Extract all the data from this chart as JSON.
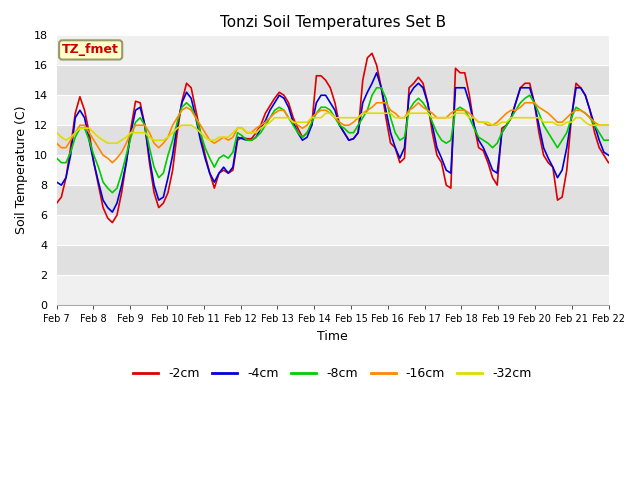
{
  "title": "Tonzi Soil Temperatures Set B",
  "xlabel": "Time",
  "ylabel": "Soil Temperature (C)",
  "annotation": "TZ_fmet",
  "annotation_color": "#cc0000",
  "annotation_bg": "#ffffcc",
  "annotation_border": "#999966",
  "ylim": [
    0,
    18
  ],
  "yticks": [
    0,
    2,
    4,
    6,
    8,
    10,
    12,
    14,
    16,
    18
  ],
  "xtick_labels": [
    "Feb 7",
    "Feb 8",
    "Feb 9",
    "Feb 10",
    "Feb 11",
    "Feb 12",
    "Feb 13",
    "Feb 14",
    "Feb 15",
    "Feb 16",
    "Feb 17",
    "Feb 18",
    "Feb 19",
    "Feb 20",
    "Feb 21",
    "Feb 22"
  ],
  "colors": {
    "-2cm": "#dd0000",
    "-4cm": "#0000dd",
    "-8cm": "#00cc00",
    "-16cm": "#ff8800",
    "-32cm": "#dddd00"
  },
  "linewidth": 1.2,
  "bg_color": "#ffffff",
  "plot_bg_light": "#f0f0f0",
  "plot_bg_dark": "#e0e0e0",
  "grid_color": "#ffffff",
  "series": {
    "-2cm": [
      6.8,
      7.2,
      8.5,
      10.5,
      12.8,
      13.9,
      13.0,
      11.5,
      9.5,
      8.0,
      6.5,
      5.8,
      5.5,
      6.0,
      7.5,
      9.5,
      11.8,
      13.6,
      13.5,
      12.0,
      9.5,
      7.5,
      6.5,
      6.8,
      7.5,
      9.0,
      11.5,
      13.6,
      14.8,
      14.5,
      13.0,
      11.5,
      10.0,
      8.8,
      7.8,
      8.8,
      9.0,
      8.8,
      9.0,
      11.0,
      11.2,
      11.1,
      11.1,
      11.5,
      12.0,
      12.8,
      13.3,
      13.8,
      14.2,
      14.0,
      13.5,
      12.5,
      11.8,
      11.2,
      11.5,
      12.0,
      15.3,
      15.3,
      15.0,
      14.5,
      13.5,
      12.0,
      11.5,
      11.0,
      11.1,
      11.5,
      15.0,
      16.5,
      16.8,
      16.0,
      14.5,
      12.5,
      10.8,
      10.5,
      9.5,
      9.8,
      14.5,
      14.8,
      15.2,
      14.8,
      13.5,
      11.5,
      10.0,
      9.5,
      8.0,
      7.8,
      15.8,
      15.5,
      15.5,
      14.0,
      12.0,
      10.5,
      10.3,
      9.5,
      8.5,
      8.0,
      11.8,
      12.0,
      12.5,
      13.5,
      14.5,
      14.8,
      14.8,
      13.5,
      11.5,
      10.0,
      9.5,
      9.2,
      7.0,
      7.2,
      9.0,
      12.5,
      14.8,
      14.5,
      14.0,
      13.0,
      11.5,
      10.5,
      10.0,
      9.5
    ],
    "-4cm": [
      8.2,
      8.0,
      8.5,
      10.0,
      12.5,
      13.0,
      12.5,
      11.0,
      9.5,
      8.2,
      7.0,
      6.5,
      6.2,
      6.8,
      8.0,
      9.5,
      11.5,
      13.0,
      13.2,
      12.0,
      9.8,
      8.0,
      7.0,
      7.2,
      8.5,
      10.0,
      12.0,
      13.5,
      14.2,
      13.8,
      12.5,
      11.0,
      9.8,
      8.8,
      8.2,
      8.8,
      9.2,
      8.8,
      9.2,
      11.2,
      11.1,
      11.0,
      11.0,
      11.2,
      11.8,
      12.3,
      13.0,
      13.5,
      14.0,
      13.8,
      13.2,
      12.2,
      11.5,
      11.0,
      11.2,
      12.0,
      13.5,
      14.0,
      14.0,
      13.5,
      13.0,
      12.0,
      11.5,
      11.0,
      11.1,
      11.5,
      13.5,
      14.2,
      14.8,
      15.5,
      14.5,
      13.0,
      11.5,
      10.5,
      9.8,
      10.5,
      14.0,
      14.5,
      14.8,
      14.5,
      13.5,
      12.0,
      10.5,
      9.8,
      9.0,
      8.8,
      14.5,
      14.5,
      14.5,
      13.5,
      12.0,
      11.0,
      10.5,
      9.8,
      9.0,
      8.8,
      11.5,
      12.0,
      12.5,
      13.5,
      14.5,
      14.5,
      14.5,
      13.5,
      12.0,
      10.5,
      9.8,
      9.2,
      8.5,
      9.0,
      10.5,
      12.5,
      14.5,
      14.5,
      14.0,
      13.0,
      12.0,
      11.0,
      10.2,
      10.0
    ],
    "-8cm": [
      9.8,
      9.5,
      9.5,
      10.2,
      11.2,
      11.8,
      11.8,
      11.0,
      10.0,
      9.2,
      8.2,
      7.8,
      7.5,
      7.8,
      8.8,
      10.0,
      11.2,
      12.2,
      12.5,
      12.0,
      10.5,
      9.2,
      8.5,
      8.8,
      10.0,
      11.0,
      12.2,
      13.2,
      13.5,
      13.2,
      12.5,
      11.5,
      10.5,
      9.8,
      9.2,
      9.8,
      10.0,
      9.8,
      10.2,
      11.5,
      11.3,
      11.0,
      11.0,
      11.2,
      11.5,
      12.0,
      12.5,
      13.0,
      13.2,
      13.0,
      12.5,
      12.0,
      11.5,
      11.2,
      11.5,
      12.2,
      12.8,
      13.2,
      13.2,
      13.0,
      12.5,
      12.0,
      11.8,
      11.5,
      11.5,
      12.0,
      12.5,
      13.0,
      14.0,
      14.5,
      14.5,
      13.8,
      12.5,
      11.5,
      11.0,
      11.2,
      13.0,
      13.5,
      13.8,
      13.5,
      13.0,
      12.2,
      11.5,
      11.0,
      10.8,
      11.0,
      13.0,
      13.2,
      13.0,
      12.5,
      11.8,
      11.2,
      11.0,
      10.8,
      10.5,
      10.8,
      11.5,
      12.0,
      12.5,
      13.0,
      13.5,
      13.8,
      14.0,
      13.5,
      12.8,
      12.0,
      11.5,
      11.0,
      10.5,
      11.0,
      11.5,
      12.5,
      13.2,
      13.0,
      12.8,
      12.5,
      12.0,
      11.5,
      11.0,
      11.0
    ],
    "-16cm": [
      10.8,
      10.5,
      10.5,
      11.0,
      11.5,
      12.0,
      12.0,
      11.5,
      11.0,
      10.5,
      10.0,
      9.8,
      9.5,
      9.8,
      10.2,
      10.8,
      11.5,
      12.0,
      12.0,
      12.0,
      11.5,
      10.8,
      10.5,
      10.8,
      11.2,
      12.0,
      12.5,
      13.0,
      13.2,
      13.0,
      12.5,
      12.0,
      11.5,
      11.0,
      10.8,
      11.0,
      11.2,
      11.0,
      11.2,
      11.8,
      11.8,
      11.5,
      11.5,
      11.8,
      12.0,
      12.2,
      12.5,
      12.8,
      13.0,
      13.0,
      12.5,
      12.2,
      12.0,
      11.8,
      12.0,
      12.5,
      12.8,
      13.0,
      13.0,
      12.8,
      12.5,
      12.2,
      12.0,
      12.0,
      12.2,
      12.5,
      12.8,
      13.0,
      13.2,
      13.5,
      13.5,
      13.5,
      13.0,
      12.8,
      12.5,
      12.5,
      13.0,
      13.2,
      13.5,
      13.2,
      13.0,
      12.8,
      12.5,
      12.5,
      12.5,
      12.8,
      13.0,
      13.0,
      13.0,
      12.8,
      12.5,
      12.2,
      12.2,
      12.0,
      12.0,
      12.2,
      12.5,
      12.8,
      13.0,
      13.0,
      13.2,
      13.5,
      13.5,
      13.5,
      13.2,
      13.0,
      12.8,
      12.5,
      12.2,
      12.2,
      12.5,
      12.8,
      13.0,
      13.0,
      12.8,
      12.5,
      12.2,
      12.0,
      12.0,
      12.0
    ],
    "-32cm": [
      11.5,
      11.2,
      11.0,
      11.2,
      11.5,
      11.8,
      11.8,
      11.8,
      11.5,
      11.2,
      11.0,
      10.8,
      10.8,
      10.8,
      11.0,
      11.2,
      11.5,
      11.5,
      11.5,
      11.5,
      11.2,
      11.0,
      11.0,
      11.0,
      11.2,
      11.5,
      11.8,
      12.0,
      12.0,
      12.0,
      11.8,
      11.5,
      11.2,
      11.0,
      11.0,
      11.2,
      11.2,
      11.2,
      11.5,
      11.8,
      11.8,
      11.5,
      11.5,
      11.5,
      11.8,
      12.0,
      12.2,
      12.5,
      12.5,
      12.5,
      12.5,
      12.2,
      12.2,
      12.2,
      12.2,
      12.5,
      12.5,
      12.5,
      12.8,
      12.8,
      12.5,
      12.5,
      12.5,
      12.5,
      12.5,
      12.5,
      12.8,
      12.8,
      12.8,
      12.8,
      12.8,
      12.8,
      12.8,
      12.5,
      12.5,
      12.5,
      12.8,
      12.8,
      12.8,
      12.8,
      12.8,
      12.5,
      12.5,
      12.5,
      12.5,
      12.5,
      12.8,
      12.8,
      12.8,
      12.5,
      12.5,
      12.2,
      12.2,
      12.2,
      12.0,
      12.0,
      12.2,
      12.2,
      12.5,
      12.5,
      12.5,
      12.5,
      12.5,
      12.5,
      12.5,
      12.2,
      12.2,
      12.2,
      12.0,
      12.0,
      12.2,
      12.2,
      12.5,
      12.5,
      12.2,
      12.0,
      12.0,
      12.0,
      12.0,
      12.0
    ]
  }
}
